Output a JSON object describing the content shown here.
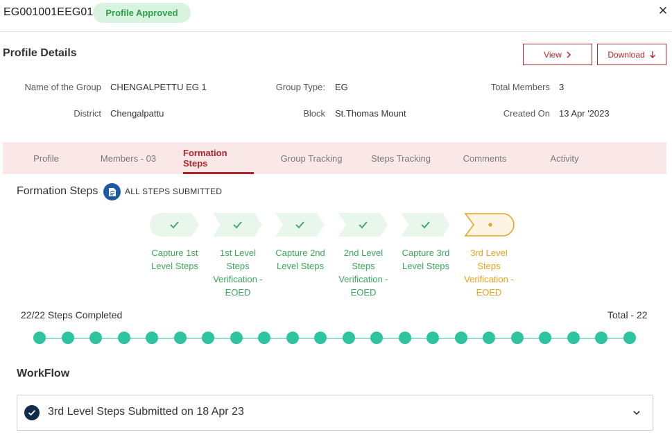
{
  "header": {
    "group_id": "EG001001EEG01",
    "status_badge": "Profile Approved",
    "close_glyph": "✕"
  },
  "profile": {
    "title": "Profile Details",
    "view_label": "View",
    "download_label": "Download",
    "fields": {
      "name_label": "Name of the Group",
      "name_value": "CHENGALPETTU EG 1",
      "type_label": "Group Type:",
      "type_value": "EG",
      "members_label": "Total Members",
      "members_value": "3",
      "district_label": "District",
      "district_value": "Chengalpattu",
      "block_label": "Block",
      "block_value": "St.Thomas Mount",
      "created_label": "Created On",
      "created_value": "13 Apr '2023"
    }
  },
  "tabs": [
    {
      "label": "Profile"
    },
    {
      "label": "Members - 03"
    },
    {
      "label": "Formation Steps"
    },
    {
      "label": "Group Tracking"
    },
    {
      "label": "Steps Tracking"
    },
    {
      "label": "Comments"
    },
    {
      "label": "Activity"
    }
  ],
  "active_tab": "Formation Steps",
  "formation": {
    "title": "Formation Steps",
    "status": "ALL STEPS SUBMITTED",
    "steps": [
      {
        "label": "Capture 1st Level Steps",
        "state": "done"
      },
      {
        "label": "1st Level Steps Verification - EOED",
        "state": "done"
      },
      {
        "label": "Capture 2nd Level Steps",
        "state": "done"
      },
      {
        "label": "2nd Level Steps Verification - EOED",
        "state": "done"
      },
      {
        "label": "Capture 3rd Level Steps",
        "state": "done"
      },
      {
        "label": "3rd Level Steps Verification - EOED",
        "state": "current"
      }
    ],
    "progress_text": "22/22 Steps Completed",
    "total_text": "Total - 22",
    "completed": 22,
    "total": 22
  },
  "workflow": {
    "title": "WorkFlow",
    "item_text": "3rd Level Steps Submitted on 18 Apr 23"
  },
  "colors": {
    "accent": "#b0262c",
    "done": "#3aa65b",
    "current": "#e6a21c",
    "track": "#2ec4a0",
    "tab_bg": "#f9e8e7",
    "badge_bg": "#d8f3df",
    "icon_blue": "#1d5aa6",
    "check_navy": "#0f2d4a"
  },
  "icons": {
    "close": "close-icon",
    "view": "chevron-right-icon",
    "download": "arrow-down-icon",
    "status": "document-icon",
    "step_done": "check-icon",
    "step_current": "dot-icon",
    "workflow_check": "check-circle-icon",
    "workflow_expand": "chevron-down-icon"
  }
}
